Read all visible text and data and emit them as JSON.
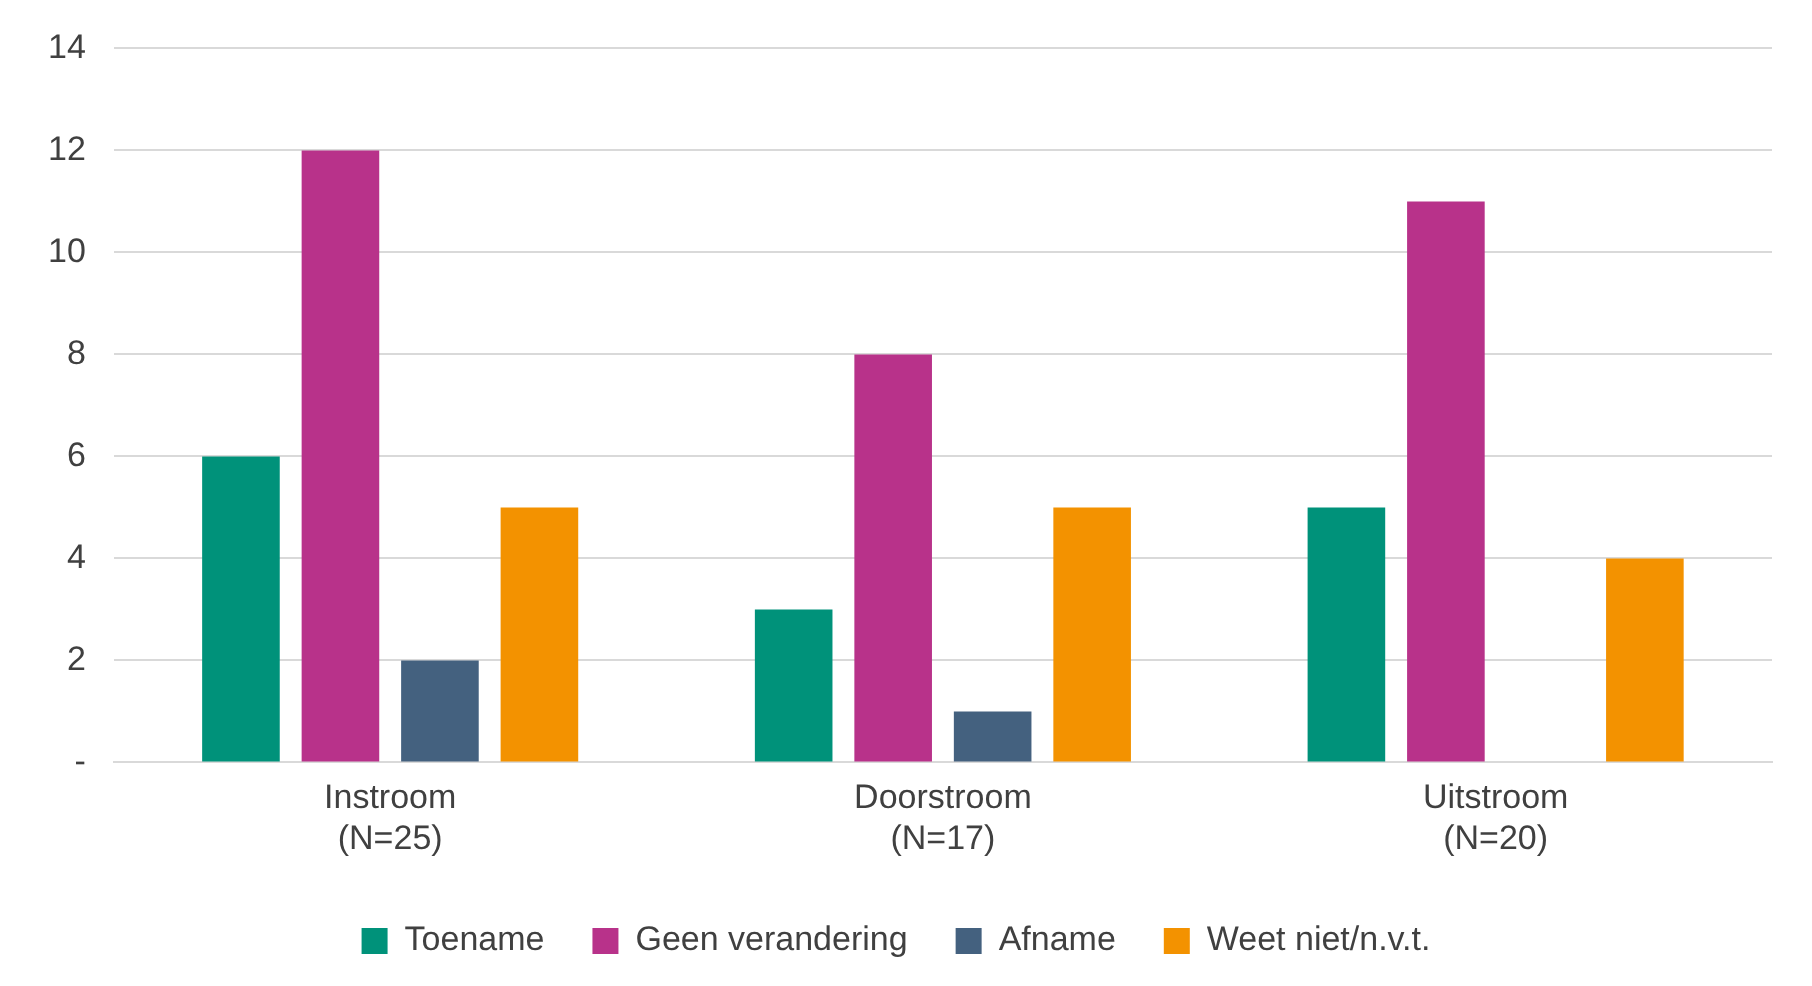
{
  "chart_data": {
    "type": "bar",
    "categories": [
      "Instroom\n(N=25)",
      "Doorstroom\n(N=17)",
      "Uitstroom\n(N=20)"
    ],
    "series": [
      {
        "name": "Toename",
        "color": "#00927a",
        "values": [
          6,
          3,
          5
        ]
      },
      {
        "name": "Geen verandering",
        "color": "#b8328a",
        "values": [
          12,
          8,
          11
        ]
      },
      {
        "name": "Afname",
        "color": "#44617f",
        "values": [
          2,
          1,
          0
        ]
      },
      {
        "name": "Weet niet/n.v.t.",
        "color": "#f39200",
        "values": [
          5,
          5,
          4
        ]
      }
    ],
    "ylim": [
      0,
      14
    ],
    "yticks": [
      {
        "value": 0,
        "label": "-"
      },
      2,
      4,
      6,
      8,
      10,
      12,
      14
    ],
    "grid": "y",
    "legend": "bottom"
  }
}
